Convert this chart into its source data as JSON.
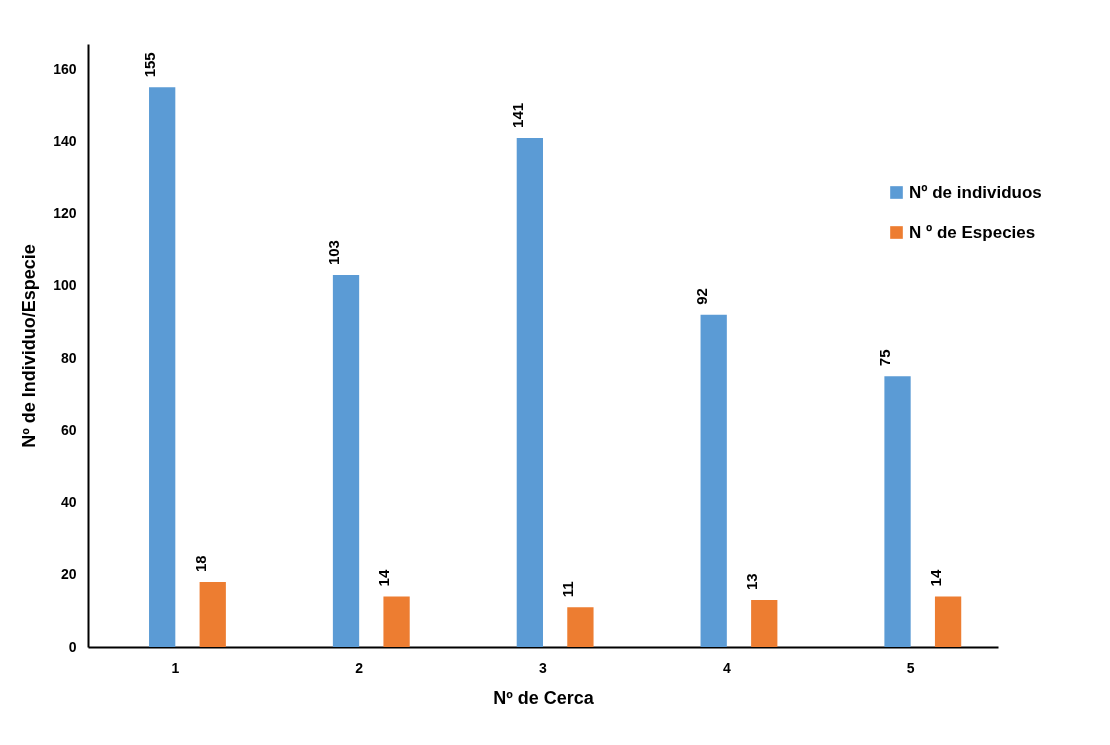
{
  "chart_data": {
    "type": "bar",
    "xlabel": "Nº  de Cerca",
    "ylabel": "Nº de Individuo/Especie",
    "categories": [
      "1",
      "2",
      "3",
      "4",
      "5"
    ],
    "series": [
      {
        "name": "Nº de individuos",
        "color": "#5b9bd5",
        "values": [
          155,
          103,
          141,
          92,
          75
        ]
      },
      {
        "name": "N º de Especies",
        "color": "#ed7d31",
        "values": [
          18,
          14,
          11,
          13,
          14
        ]
      }
    ],
    "ylim": [
      0,
      167
    ],
    "yticks": [
      0,
      20,
      40,
      60,
      80,
      100,
      120,
      140,
      160
    ],
    "data_labels": true,
    "legend": "right",
    "grid": false
  }
}
